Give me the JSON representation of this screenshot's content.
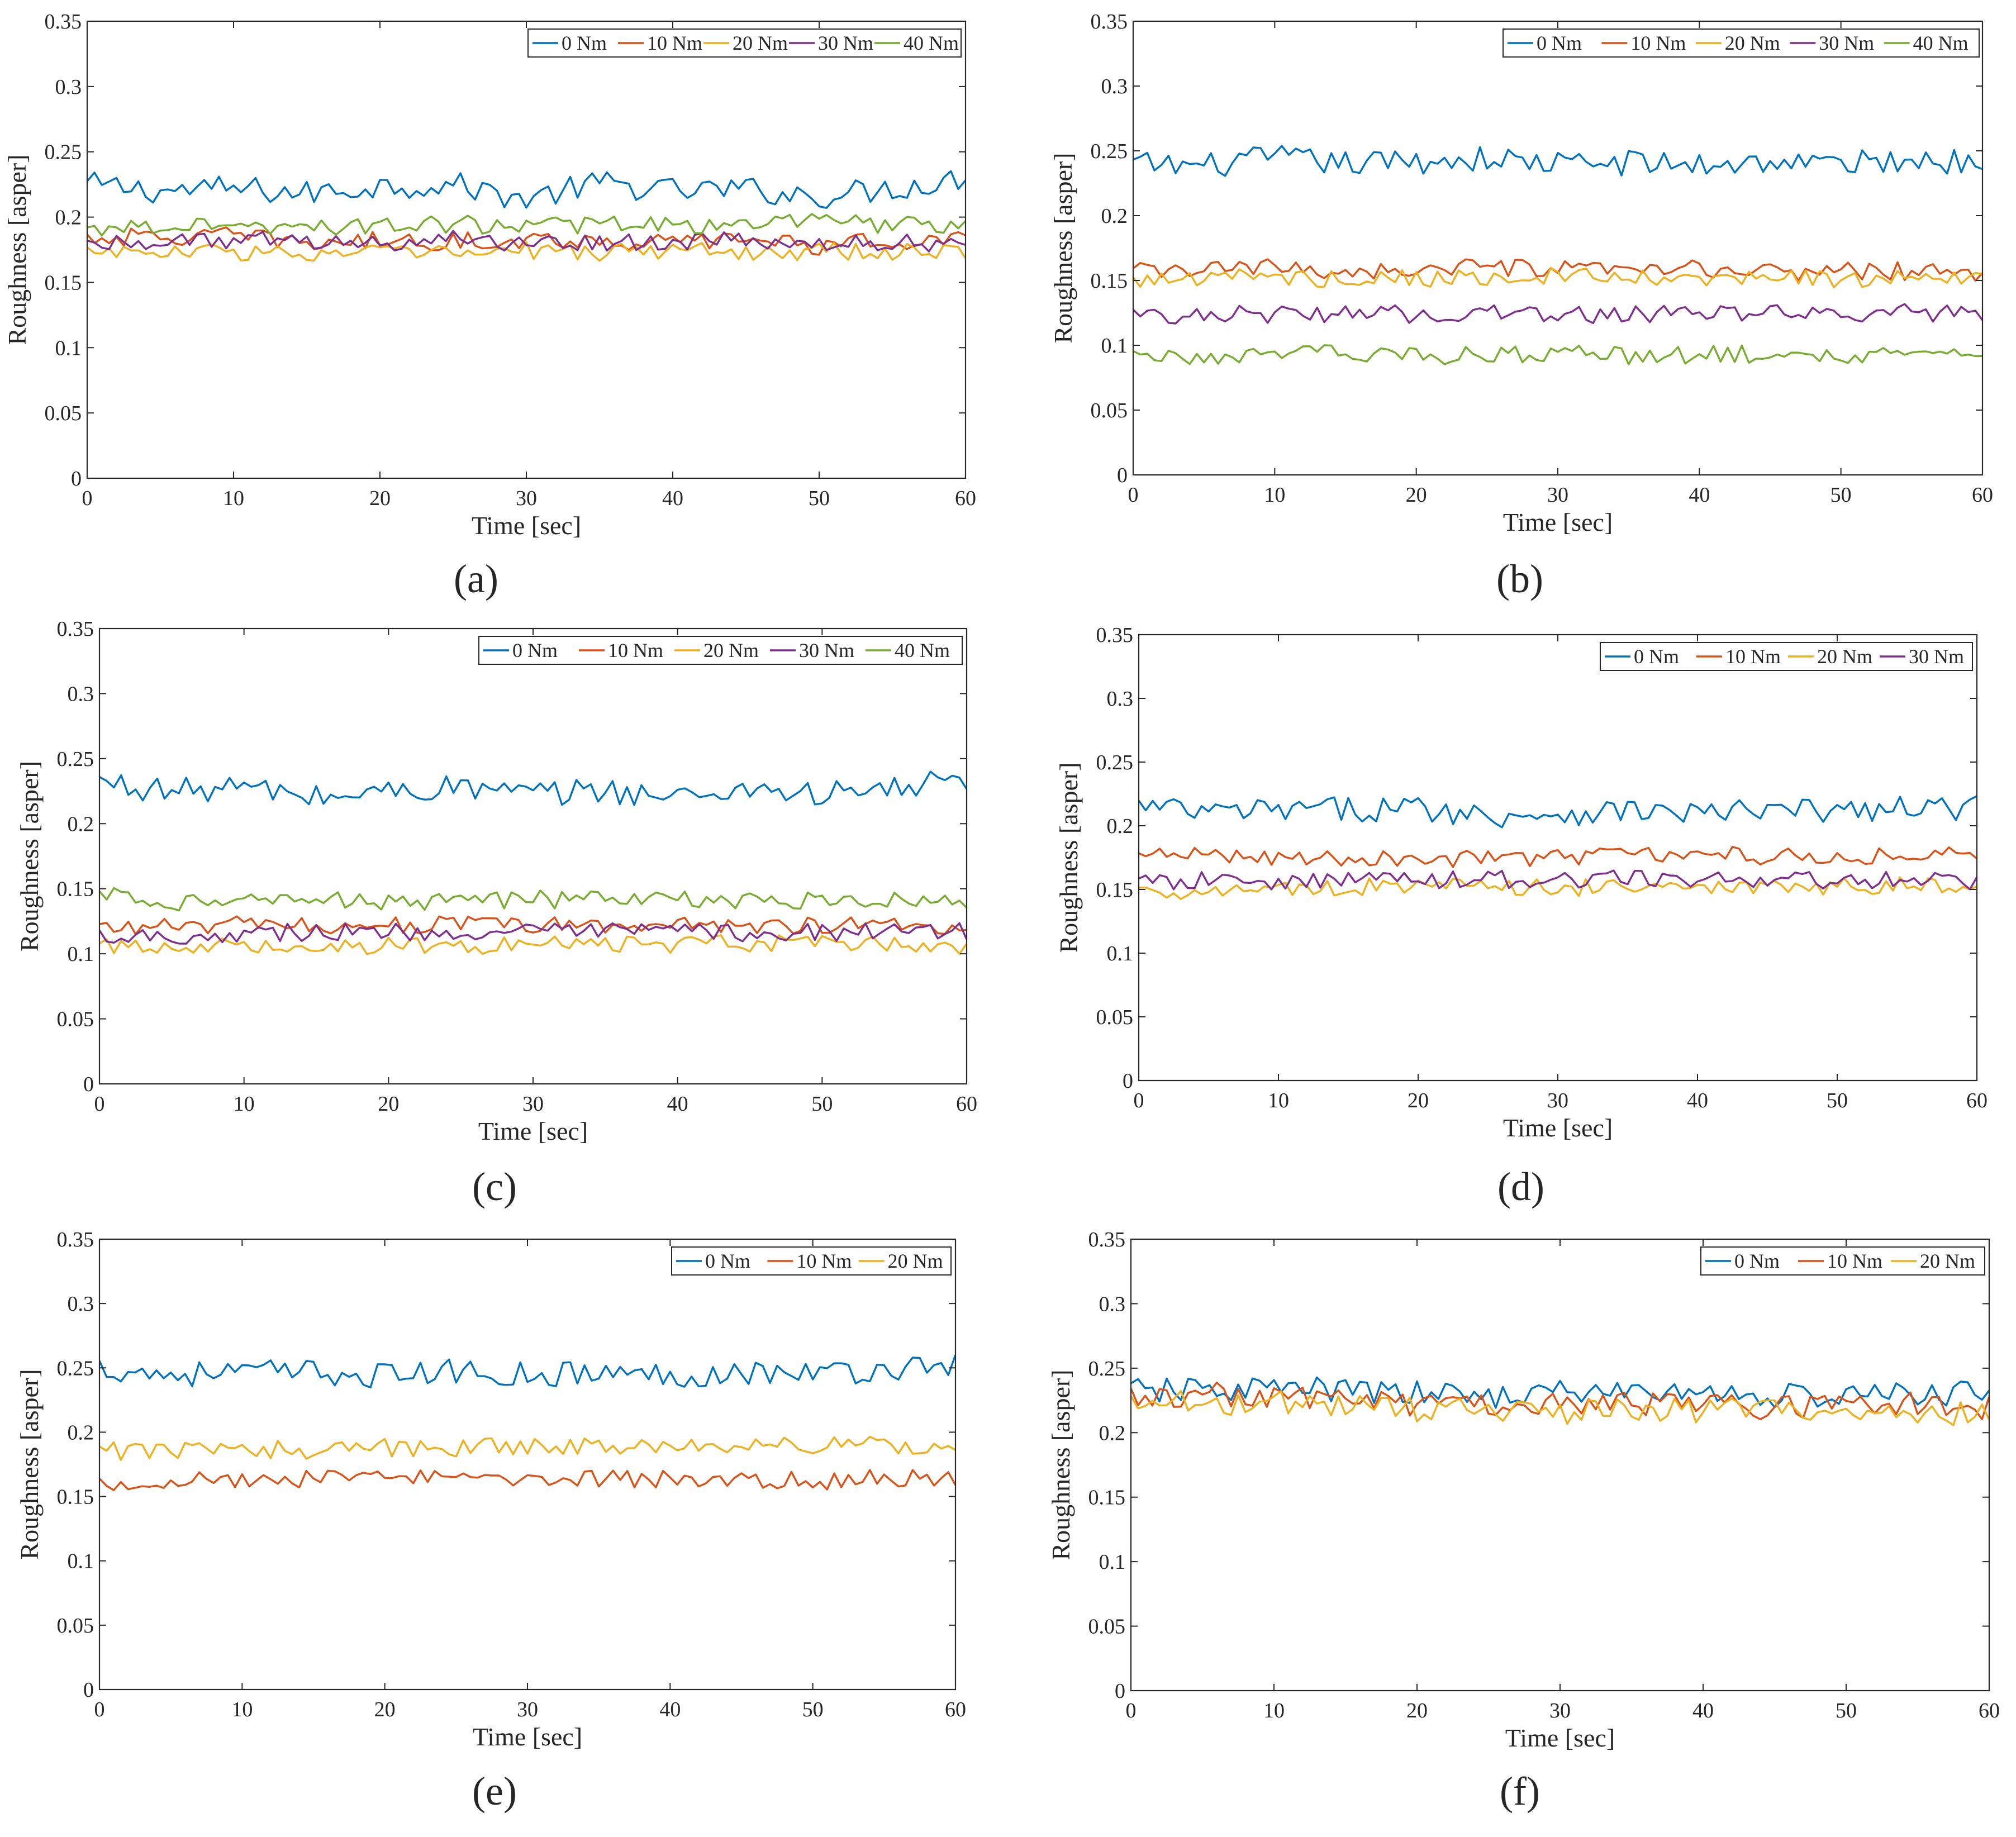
{
  "figure": {
    "title": ""
  },
  "chart_data": [
    {
      "type": "line",
      "panel_label": "(a)",
      "title": "",
      "xlabel": "Time [sec]",
      "ylabel": "Roughness [asper]",
      "xlim": [
        0,
        60
      ],
      "ylim": [
        0,
        0.35
      ],
      "xticks": [
        "0",
        "10",
        "20",
        "30",
        "40",
        "50",
        "60"
      ],
      "yticks": [
        "0",
        "0.05",
        "0.1",
        "0.15",
        "0.2",
        "0.25",
        "0.3",
        "0.35"
      ],
      "legend_position": "top-right",
      "grid": false,
      "series": [
        {
          "name": "0 Nm",
          "color": "#0072bd",
          "x": [
            0,
            5,
            10,
            15,
            20,
            25,
            30,
            35,
            40,
            45,
            50,
            55,
            60
          ],
          "values": [
            0.225,
            0.22,
            0.222,
            0.218,
            0.224,
            0.225,
            0.214,
            0.226,
            0.22,
            0.221,
            0.216,
            0.222,
            0.23
          ]
        },
        {
          "name": "10 Nm",
          "color": "#d95319",
          "x": [
            0,
            5,
            10,
            15,
            20,
            25,
            30,
            35,
            40,
            45,
            50,
            55,
            60
          ],
          "values": [
            0.185,
            0.184,
            0.186,
            0.18,
            0.182,
            0.181,
            0.183,
            0.182,
            0.18,
            0.184,
            0.178,
            0.182,
            0.183
          ]
        },
        {
          "name": "20 Nm",
          "color": "#edb120",
          "x": [
            0,
            5,
            10,
            15,
            20,
            25,
            30,
            35,
            40,
            45,
            50,
            55,
            60
          ],
          "values": [
            0.175,
            0.172,
            0.174,
            0.171,
            0.173,
            0.172,
            0.174,
            0.173,
            0.175,
            0.173,
            0.174,
            0.172,
            0.175
          ]
        },
        {
          "name": "30 Nm",
          "color": "#7e2f8e",
          "x": [
            0,
            5,
            10,
            15,
            20,
            25,
            30,
            35,
            40,
            45,
            50,
            55,
            60
          ],
          "values": [
            0.18,
            0.182,
            0.183,
            0.18,
            0.181,
            0.183,
            0.18,
            0.181,
            0.18,
            0.182,
            0.179,
            0.18,
            0.181
          ]
        },
        {
          "name": "40 Nm",
          "color": "#77ac30",
          "x": [
            0,
            5,
            10,
            15,
            20,
            25,
            30,
            35,
            40,
            45,
            50,
            55,
            60
          ],
          "values": [
            0.19,
            0.195,
            0.193,
            0.194,
            0.192,
            0.195,
            0.193,
            0.194,
            0.193,
            0.195,
            0.196,
            0.194,
            0.195
          ]
        }
      ]
    },
    {
      "type": "line",
      "panel_label": "(b)",
      "title": "",
      "xlabel": "Time [sec]",
      "ylabel": "Roughness [asper]",
      "xlim": [
        0,
        60
      ],
      "ylim": [
        0,
        0.35
      ],
      "xticks": [
        "0",
        "10",
        "20",
        "30",
        "40",
        "50",
        "60"
      ],
      "yticks": [
        "0",
        "0.05",
        "0.1",
        "0.15",
        "0.2",
        "0.25",
        "0.3",
        "0.35"
      ],
      "legend_position": "top-right",
      "grid": false,
      "series": [
        {
          "name": "0 Nm",
          "color": "#0072bd",
          "x": [
            0,
            5,
            10,
            15,
            20,
            25,
            30,
            35,
            40,
            45,
            50,
            55,
            60
          ],
          "values": [
            0.24,
            0.238,
            0.245,
            0.24,
            0.242,
            0.244,
            0.24,
            0.241,
            0.239,
            0.242,
            0.24,
            0.243,
            0.241
          ]
        },
        {
          "name": "10 Nm",
          "color": "#d95319",
          "x": [
            0,
            5,
            10,
            15,
            20,
            25,
            30,
            35,
            40,
            45,
            50,
            55,
            60
          ],
          "values": [
            0.157,
            0.158,
            0.16,
            0.157,
            0.158,
            0.16,
            0.158,
            0.157,
            0.159,
            0.156,
            0.158,
            0.157,
            0.155
          ]
        },
        {
          "name": "20 Nm",
          "color": "#edb120",
          "x": [
            0,
            5,
            10,
            15,
            20,
            25,
            30,
            35,
            40,
            45,
            50,
            55,
            60
          ],
          "values": [
            0.15,
            0.152,
            0.153,
            0.151,
            0.152,
            0.152,
            0.153,
            0.151,
            0.15,
            0.152,
            0.151,
            0.152,
            0.15
          ]
        },
        {
          "name": "30 Nm",
          "color": "#7e2f8e",
          "x": [
            0,
            5,
            10,
            15,
            20,
            25,
            30,
            35,
            40,
            45,
            50,
            55,
            60
          ],
          "values": [
            0.125,
            0.123,
            0.124,
            0.125,
            0.124,
            0.125,
            0.124,
            0.123,
            0.124,
            0.125,
            0.124,
            0.125,
            0.124
          ]
        },
        {
          "name": "40 Nm",
          "color": "#77ac30",
          "x": [
            0,
            5,
            10,
            15,
            20,
            25,
            30,
            35,
            40,
            45,
            50,
            55,
            60
          ],
          "values": [
            0.093,
            0.092,
            0.094,
            0.093,
            0.092,
            0.093,
            0.094,
            0.092,
            0.093,
            0.093,
            0.092,
            0.093,
            0.092
          ]
        }
      ]
    },
    {
      "type": "line",
      "panel_label": "(c)",
      "title": "",
      "xlabel": "Time [sec]",
      "ylabel": "Roughness [asper]",
      "xlim": [
        0,
        60
      ],
      "ylim": [
        0,
        0.35
      ],
      "xticks": [
        "0",
        "10",
        "20",
        "30",
        "40",
        "50",
        "60"
      ],
      "yticks": [
        "0",
        "0.05",
        "0.1",
        "0.15",
        "0.2",
        "0.25",
        "0.3",
        "0.35"
      ],
      "legend_position": "top-right",
      "grid": false,
      "series": [
        {
          "name": "0 Nm",
          "color": "#0072bd",
          "x": [
            0,
            5,
            10,
            15,
            20,
            25,
            30,
            35,
            40,
            45,
            50,
            55,
            60
          ],
          "values": [
            0.232,
            0.225,
            0.228,
            0.22,
            0.225,
            0.228,
            0.222,
            0.226,
            0.22,
            0.228,
            0.222,
            0.227,
            0.235
          ]
        },
        {
          "name": "10 Nm",
          "color": "#d95319",
          "x": [
            0,
            5,
            10,
            15,
            20,
            25,
            30,
            35,
            40,
            45,
            50,
            55,
            60
          ],
          "values": [
            0.12,
            0.121,
            0.122,
            0.121,
            0.123,
            0.122,
            0.122,
            0.121,
            0.123,
            0.122,
            0.122,
            0.121,
            0.12
          ]
        },
        {
          "name": "20 Nm",
          "color": "#edb120",
          "x": [
            0,
            5,
            10,
            15,
            20,
            25,
            30,
            35,
            40,
            45,
            50,
            55,
            60
          ],
          "values": [
            0.105,
            0.106,
            0.107,
            0.106,
            0.107,
            0.106,
            0.107,
            0.106,
            0.107,
            0.108,
            0.107,
            0.106,
            0.105
          ]
        },
        {
          "name": "30 Nm",
          "color": "#7e2f8e",
          "x": [
            0,
            5,
            10,
            15,
            20,
            25,
            30,
            35,
            40,
            45,
            50,
            55,
            60
          ],
          "values": [
            0.115,
            0.113,
            0.116,
            0.117,
            0.116,
            0.117,
            0.116,
            0.117,
            0.117,
            0.116,
            0.117,
            0.116,
            0.118
          ]
        },
        {
          "name": "40 Nm",
          "color": "#77ac30",
          "x": [
            0,
            5,
            10,
            15,
            20,
            25,
            30,
            35,
            40,
            45,
            50,
            55,
            60
          ],
          "values": [
            0.145,
            0.14,
            0.141,
            0.142,
            0.139,
            0.141,
            0.142,
            0.141,
            0.142,
            0.14,
            0.141,
            0.14,
            0.138
          ]
        }
      ]
    },
    {
      "type": "line",
      "panel_label": "(d)",
      "title": "",
      "xlabel": "Time [sec]",
      "ylabel": "Roughness [asper]",
      "xlim": [
        0,
        60
      ],
      "ylim": [
        0,
        0.35
      ],
      "xticks": [
        "0",
        "10",
        "20",
        "30",
        "40",
        "50",
        "60"
      ],
      "yticks": [
        "0",
        "0.05",
        "0.1",
        "0.15",
        "0.2",
        "0.25",
        "0.3",
        "0.35"
      ],
      "legend_position": "top-right",
      "grid": false,
      "series": [
        {
          "name": "0 Nm",
          "color": "#0072bd",
          "x": [
            0,
            5,
            10,
            15,
            20,
            25,
            30,
            35,
            40,
            45,
            50,
            55,
            60
          ],
          "values": [
            0.215,
            0.21,
            0.212,
            0.213,
            0.214,
            0.208,
            0.21,
            0.212,
            0.21,
            0.211,
            0.212,
            0.213,
            0.215
          ]
        },
        {
          "name": "10 Nm",
          "color": "#d95319",
          "x": [
            0,
            5,
            10,
            15,
            20,
            25,
            30,
            35,
            40,
            45,
            50,
            55,
            60
          ],
          "values": [
            0.175,
            0.178,
            0.176,
            0.174,
            0.175,
            0.174,
            0.176,
            0.177,
            0.178,
            0.176,
            0.177,
            0.176,
            0.178
          ]
        },
        {
          "name": "20 Nm",
          "color": "#edb120",
          "x": [
            0,
            5,
            10,
            15,
            20,
            25,
            30,
            35,
            40,
            45,
            50,
            55,
            60
          ],
          "values": [
            0.148,
            0.15,
            0.151,
            0.152,
            0.151,
            0.152,
            0.151,
            0.152,
            0.153,
            0.151,
            0.152,
            0.153,
            0.152
          ]
        },
        {
          "name": "30 Nm",
          "color": "#7e2f8e",
          "x": [
            0,
            5,
            10,
            15,
            20,
            25,
            30,
            35,
            40,
            45,
            50,
            55,
            60
          ],
          "values": [
            0.155,
            0.157,
            0.156,
            0.158,
            0.157,
            0.158,
            0.157,
            0.159,
            0.157,
            0.158,
            0.156,
            0.158,
            0.155
          ]
        }
      ]
    },
    {
      "type": "line",
      "panel_label": "(e)",
      "title": "",
      "xlabel": "Time [sec]",
      "ylabel": "Roughness [asper]",
      "xlim": [
        0,
        60
      ],
      "ylim": [
        0,
        0.35
      ],
      "xticks": [
        "0",
        "10",
        "20",
        "30",
        "40",
        "50",
        "60"
      ],
      "yticks": [
        "0",
        "0.05",
        "0.1",
        "0.15",
        "0.2",
        "0.25",
        "0.3",
        "0.35"
      ],
      "legend_position": "top-right",
      "grid": false,
      "series": [
        {
          "name": "0 Nm",
          "color": "#0072bd",
          "x": [
            0,
            5,
            10,
            15,
            20,
            25,
            30,
            35,
            40,
            45,
            50,
            55,
            60
          ],
          "values": [
            0.25,
            0.245,
            0.247,
            0.246,
            0.244,
            0.247,
            0.245,
            0.246,
            0.244,
            0.247,
            0.246,
            0.248,
            0.255
          ]
        },
        {
          "name": "10 Nm",
          "color": "#d95319",
          "x": [
            0,
            5,
            10,
            15,
            20,
            25,
            30,
            35,
            40,
            45,
            50,
            55,
            60
          ],
          "values": [
            0.16,
            0.163,
            0.164,
            0.163,
            0.165,
            0.164,
            0.165,
            0.164,
            0.164,
            0.163,
            0.162,
            0.164,
            0.165
          ]
        },
        {
          "name": "20 Nm",
          "color": "#edb120",
          "x": [
            0,
            5,
            10,
            15,
            20,
            25,
            30,
            35,
            40,
            45,
            50,
            55,
            60
          ],
          "values": [
            0.185,
            0.186,
            0.187,
            0.186,
            0.188,
            0.187,
            0.19,
            0.189,
            0.19,
            0.191,
            0.19,
            0.191,
            0.188
          ]
        }
      ]
    },
    {
      "type": "line",
      "panel_label": "(f)",
      "title": "",
      "xlabel": "Time [sec]",
      "ylabel": "Roughness [asper]",
      "xlim": [
        0,
        60
      ],
      "ylim": [
        0,
        0.35
      ],
      "xticks": [
        "0",
        "10",
        "20",
        "30",
        "40",
        "50",
        "60"
      ],
      "yticks": [
        "0",
        "0.05",
        "0.1",
        "0.15",
        "0.2",
        "0.25",
        "0.3",
        "0.35"
      ],
      "legend_position": "top-right",
      "grid": false,
      "series": [
        {
          "name": "0 Nm",
          "color": "#0072bd",
          "x": [
            0,
            5,
            10,
            15,
            20,
            25,
            30,
            35,
            40,
            45,
            50,
            55,
            60
          ],
          "values": [
            0.232,
            0.233,
            0.235,
            0.232,
            0.23,
            0.229,
            0.231,
            0.232,
            0.23,
            0.229,
            0.228,
            0.23,
            0.231
          ]
        },
        {
          "name": "10 Nm",
          "color": "#d95319",
          "x": [
            0,
            5,
            10,
            15,
            20,
            25,
            30,
            35,
            40,
            45,
            50,
            55,
            60
          ],
          "values": [
            0.228,
            0.23,
            0.229,
            0.225,
            0.222,
            0.22,
            0.222,
            0.221,
            0.222,
            0.22,
            0.221,
            0.222,
            0.22
          ]
        },
        {
          "name": "20 Nm",
          "color": "#edb120",
          "x": [
            0,
            5,
            10,
            15,
            20,
            25,
            30,
            35,
            40,
            45,
            50,
            55,
            60
          ],
          "values": [
            0.222,
            0.224,
            0.223,
            0.22,
            0.218,
            0.217,
            0.216,
            0.217,
            0.218,
            0.216,
            0.217,
            0.215,
            0.216
          ]
        }
      ]
    }
  ]
}
